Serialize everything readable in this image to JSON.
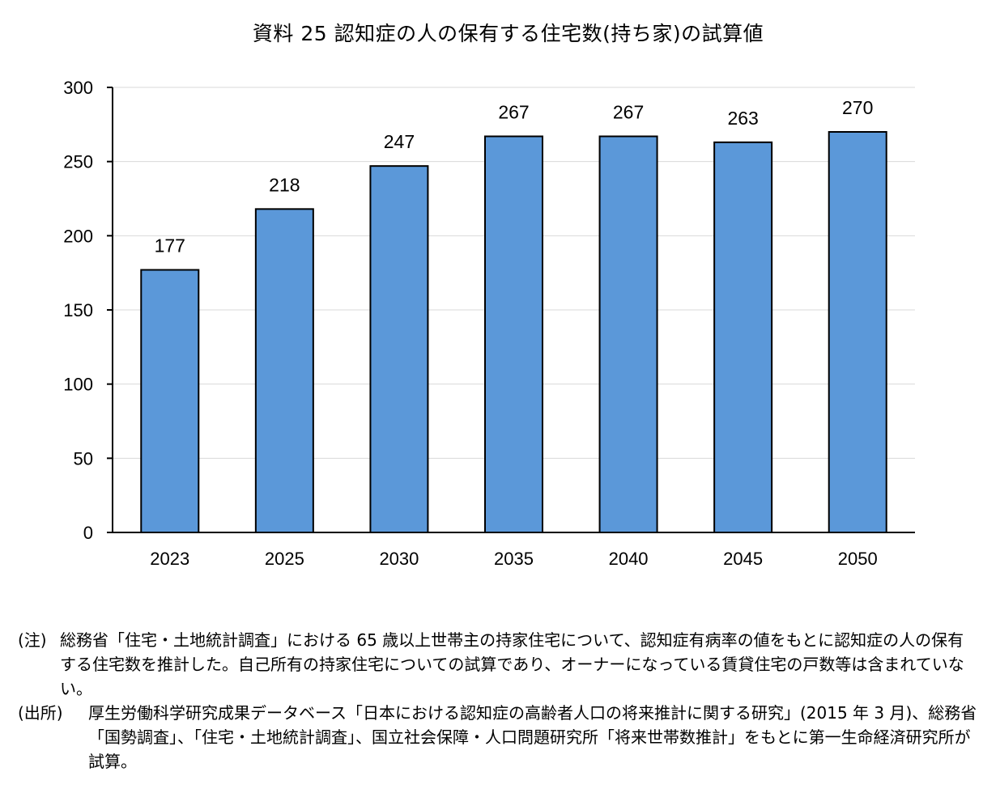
{
  "chart_data": {
    "type": "bar",
    "title": "資料 25 認知症の人の保有する住宅数(持ち家)の試算値",
    "categories": [
      "2023",
      "2025",
      "2030",
      "2035",
      "2040",
      "2045",
      "2050"
    ],
    "values": [
      177,
      218,
      247,
      267,
      267,
      263,
      270
    ],
    "data_labels": [
      "177",
      "218",
      "247",
      "267",
      "267",
      "263",
      "270"
    ],
    "ylim": [
      0,
      300
    ],
    "yticks": [
      0,
      50,
      100,
      150,
      200,
      250,
      300
    ],
    "ytick_labels": [
      "0",
      "50",
      "100",
      "150",
      "200",
      "250",
      "300"
    ],
    "grid": true,
    "bar_color": "#5b98d9"
  },
  "notes": {
    "note_prefix": "(注)",
    "note_text": "総務省「住宅・土地統計調査」における 65 歳以上世帯主の持家住宅について、認知症有病率の値をもとに認知症の人の保有する住宅数を推計した。自己所有の持家住宅についての試算であり、オーナーになっている賃貸住宅の戸数等は含まれていない。",
    "source_prefix": "(出所)",
    "source_text": "厚生労働科学研究成果データベース「日本における認知症の高齢者人口の将来推計に関する研究」(2015 年 3 月)、総務省「国勢調査」、「住宅・土地統計調査」、国立社会保障・人口問題研究所「将来世帯数推計」をもとに第一生命経済研究所が試算。"
  }
}
